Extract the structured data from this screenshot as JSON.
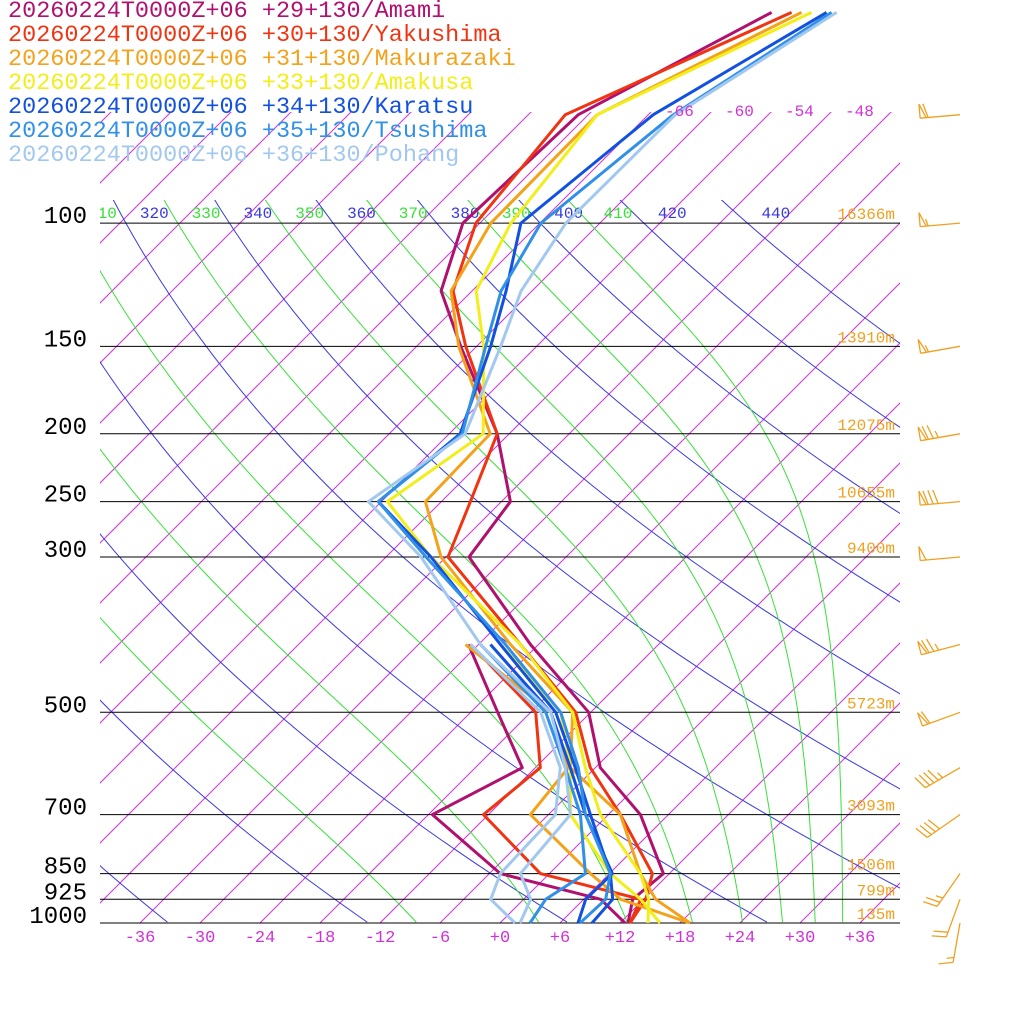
{
  "chart_data": {
    "type": "skew-t",
    "levels": [
      1000,
      925,
      850,
      700,
      600,
      500,
      400,
      300,
      250,
      200,
      150,
      125,
      100,
      70,
      50
    ],
    "series": [
      {
        "name": "20260224T0000Z+06 +29+130/Amami",
        "color": "#b0106e",
        "temperature": [
          12.8,
          10.9,
          11.4,
          3.2,
          -5.5,
          -12.2,
          -24.8,
          -39.7,
          -41.1,
          -49.2,
          -61.6,
          -69.1,
          -73.7,
          -73.0,
          -63.9
        ],
        "dewpoint": [
          12.5,
          7.7,
          -4.9,
          -17.6,
          -13.3,
          -21.3,
          -31.0,
          null,
          null,
          null,
          null,
          null,
          null,
          null,
          null
        ]
      },
      {
        "name": "20260224T0000Z+06 +30+130/Yakushima",
        "color": "#f03412",
        "temperature": [
          13.0,
          12.2,
          10.3,
          1.2,
          -6.5,
          -13.5,
          -25.8,
          -41.8,
          -45.1,
          -49.2,
          -61.1,
          -67.9,
          -72.4,
          -74.3,
          -61.9
        ],
        "dewpoint": [
          13.0,
          11.7,
          -0.9,
          -12.5,
          -11.5,
          -17.5,
          -30.8,
          null,
          null,
          null,
          null,
          null,
          null,
          null,
          null
        ]
      },
      {
        "name": "20260224T0000Z+06 +31+130/Makurazaki",
        "color": "#f4a21c",
        "temperature": [
          19.0,
          13.2,
          9.1,
          1.2,
          -8.5,
          -13.8,
          -26.8,
          -42.5,
          -49.6,
          -49.9,
          -61.8,
          -68.1,
          -70.9,
          -71.1,
          -60.9
        ],
        "dewpoint": [
          19.0,
          9.7,
          4.1,
          -7.8,
          -8.7,
          -16.0,
          -31.3,
          null,
          null,
          null,
          null,
          null,
          null,
          null,
          null
        ]
      },
      {
        "name": "20260224T0000Z+06 +33+130/Amakusa",
        "color": "#f2ee1a",
        "temperature": [
          14.8,
          12.5,
          9.1,
          -0.8,
          -7.0,
          -13.8,
          -25.8,
          -43.5,
          -53.4,
          -50.6,
          -59.3,
          -65.6,
          -68.9,
          -71.1,
          -59.9
        ],
        "dewpoint": [
          16.0,
          11.7,
          6.1,
          -3.8,
          -8.5,
          -15.0,
          -27.8,
          null,
          null,
          null,
          null,
          null,
          null,
          null,
          null
        ]
      },
      {
        "name": "20260224T0000Z+06 +34+130/Karatsu",
        "color": "#1250e0",
        "temperature": [
          9.2,
          8.9,
          6.1,
          -1.8,
          -8.0,
          -15.5,
          -27.8,
          -43.5,
          -54.3,
          -52.9,
          -58.6,
          -62.6,
          -67.9,
          -65.5,
          -58.4
        ],
        "dewpoint": [
          7.8,
          6.2,
          6.3,
          -2.3,
          -8.5,
          -16.0,
          -28.8,
          null,
          null,
          null,
          null,
          null,
          null,
          null,
          null
        ]
      },
      {
        "name": "20260224T0000Z+06 +35+130/Tsushima",
        "color": "#3090e8",
        "temperature": [
          8.0,
          8.2,
          6.1,
          -2.3,
          -7.7,
          -15.0,
          -27.3,
          -44.0,
          -54.3,
          -52.7,
          -59.1,
          -63.1,
          -65.9,
          -63.5,
          -57.9
        ],
        "dewpoint": [
          3.0,
          2.2,
          3.6,
          -2.8,
          -9.0,
          -16.5,
          -29.8,
          null,
          null,
          null,
          null,
          null,
          null,
          null,
          null
        ]
      },
      {
        "name": "20260224T0000Z+06 +36+130/Pohang",
        "color": "#a2c8f0",
        "temperature": [
          2.0,
          0.7,
          -2.9,
          -3.8,
          -9.0,
          -16.0,
          -29.8,
          -44.5,
          -55.3,
          -52.4,
          -57.6,
          -61.1,
          -63.4,
          -63.3,
          -57.4
        ],
        "dewpoint": [
          1.5,
          -3.3,
          -4.9,
          -5.3,
          -9.5,
          -17.0,
          -30.8,
          null,
          null,
          null,
          null,
          null,
          null,
          null,
          null
        ]
      }
    ],
    "xlim": [
      -40,
      40
    ],
    "ylim": [
      1000,
      48
    ],
    "log_scale_y": true,
    "xticks": [
      -36,
      -30,
      -24,
      -18,
      -12,
      -6,
      {
        "value": 0,
        "label": "+0"
      },
      {
        "value": 6,
        "label": "+6"
      },
      {
        "value": 12,
        "label": "+12"
      },
      {
        "value": 18,
        "label": "+18"
      },
      {
        "value": 24,
        "label": "+24"
      },
      {
        "value": 30,
        "label": "+30"
      },
      {
        "value": 36,
        "label": "+36"
      }
    ],
    "yticks": [
      100,
      150,
      200,
      250,
      300,
      500,
      700,
      850,
      925,
      1000
    ],
    "heights": [
      "16366m",
      "13910m",
      "12075m",
      "10655m",
      "9400m",
      "5723m",
      "3093m",
      "1506m",
      "799m",
      "135m"
    ],
    "isotherms": [
      -120,
      -114,
      -108,
      -102,
      -96,
      -90,
      -84,
      -78,
      -72,
      -66,
      -60,
      -54,
      -48,
      -42,
      -36,
      -30,
      -24,
      -18,
      -12,
      -6,
      0,
      6,
      12,
      18,
      24,
      30,
      36
    ],
    "isotherm_labels": [
      -66,
      -60,
      -54,
      -48
    ],
    "dry_adiabats": [
      240,
      260,
      280,
      300,
      320,
      340,
      360,
      380,
      400,
      420,
      440
    ],
    "moist_adiabats": [
      270,
      290,
      310,
      330,
      350,
      370,
      390,
      410
    ],
    "isotherm_color": "#d030d8",
    "dry_adiabat_color": "#3838e0",
    "moist_adiabat_color": "#38e038",
    "wind_color": "#f0a020",
    "winds": {
      "pressure": [
        70,
        100,
        150,
        200,
        250,
        300,
        400,
        500,
        600,
        700,
        850,
        925,
        1000
      ],
      "direction": [
        265,
        265,
        260,
        260,
        265,
        265,
        255,
        250,
        240,
        235,
        215,
        200,
        190
      ],
      "speed": [
        60,
        55,
        55,
        75,
        80,
        50,
        75,
        60,
        45,
        40,
        25,
        20,
        15
      ]
    }
  }
}
